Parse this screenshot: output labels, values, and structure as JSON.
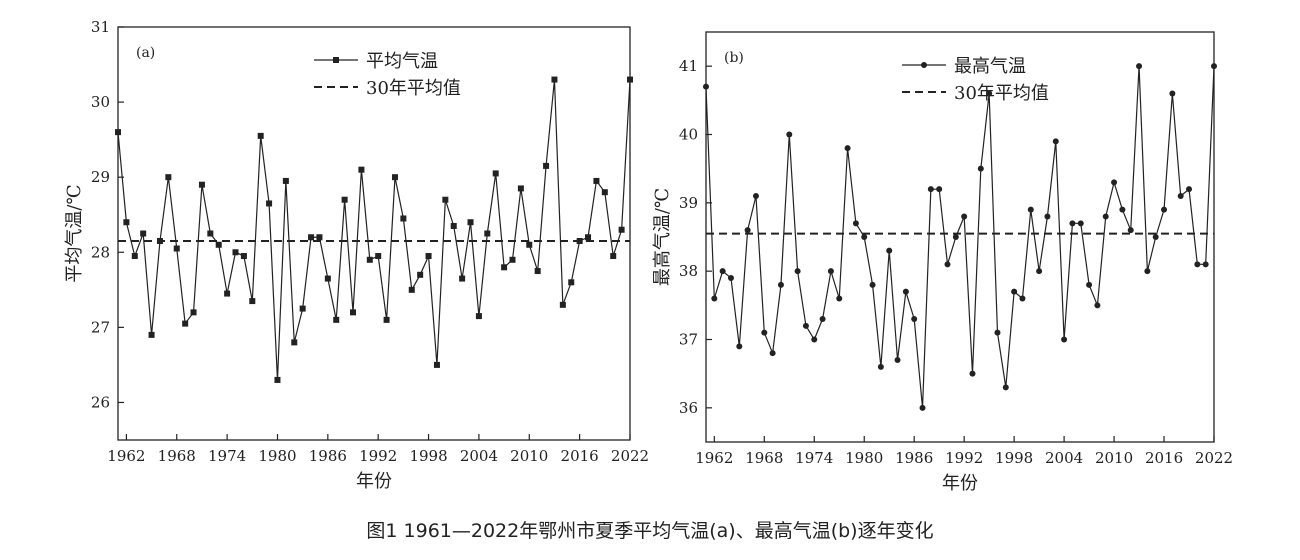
{
  "caption": "图1 1961—2022年鄂州市夏季平均气温(a)、最高气温(b)逐年变化",
  "chart_data": [
    {
      "type": "line",
      "panel_label": "(a)",
      "xlabel": "年份",
      "ylabel": "平均气温/℃",
      "xlim": [
        1961,
        2022
      ],
      "ylim": [
        25.5,
        31
      ],
      "xticks": [
        1962,
        1968,
        1974,
        1980,
        1986,
        1992,
        1998,
        2004,
        2010,
        2016,
        2022
      ],
      "yticks": [
        26,
        27,
        28,
        29,
        30,
        31
      ],
      "legend": [
        "平均气温",
        "30年平均值"
      ],
      "legend_position": "top-center",
      "marker": "square",
      "reference_line": {
        "name": "30年平均值",
        "value": 28.15
      },
      "series": [
        {
          "name": "平均气温",
          "x": [
            1961,
            1962,
            1963,
            1964,
            1965,
            1966,
            1967,
            1968,
            1969,
            1970,
            1971,
            1972,
            1973,
            1974,
            1975,
            1976,
            1977,
            1978,
            1979,
            1980,
            1981,
            1982,
            1983,
            1984,
            1985,
            1986,
            1987,
            1988,
            1989,
            1990,
            1991,
            1992,
            1993,
            1994,
            1995,
            1996,
            1997,
            1998,
            1999,
            2000,
            2001,
            2002,
            2003,
            2004,
            2005,
            2006,
            2007,
            2008,
            2009,
            2010,
            2011,
            2012,
            2013,
            2014,
            2015,
            2016,
            2017,
            2018,
            2019,
            2020,
            2021,
            2022
          ],
          "y": [
            29.6,
            28.4,
            27.95,
            28.25,
            26.9,
            28.15,
            29.0,
            28.05,
            27.05,
            27.2,
            28.9,
            28.25,
            28.1,
            27.45,
            28.0,
            27.95,
            27.35,
            29.55,
            28.65,
            26.3,
            28.95,
            26.8,
            27.25,
            28.2,
            28.2,
            27.65,
            27.1,
            28.7,
            27.2,
            29.1,
            27.9,
            27.95,
            27.1,
            29.0,
            28.45,
            27.5,
            27.7,
            27.95,
            26.5,
            28.7,
            28.35,
            27.65,
            28.4,
            27.15,
            28.25,
            29.05,
            27.8,
            27.9,
            28.85,
            28.1,
            27.75,
            29.15,
            30.3,
            27.3,
            27.6,
            28.15,
            28.2,
            28.95,
            28.8,
            27.95,
            28.3,
            30.3
          ]
        }
      ]
    },
    {
      "type": "line",
      "panel_label": "(b)",
      "xlabel": "年份",
      "ylabel": "最高气温/℃",
      "xlim": [
        1961,
        2022
      ],
      "ylim": [
        35.5,
        41.5
      ],
      "xticks": [
        1962,
        1968,
        1974,
        1980,
        1986,
        1992,
        1998,
        2004,
        2010,
        2016,
        2022
      ],
      "yticks": [
        36,
        37,
        38,
        39,
        40,
        41
      ],
      "legend": [
        "最高气温",
        "30年平均值"
      ],
      "legend_position": "top-center",
      "marker": "circle",
      "reference_line": {
        "name": "30年平均值",
        "value": 38.55
      },
      "series": [
        {
          "name": "最高气温",
          "x": [
            1961,
            1962,
            1963,
            1964,
            1965,
            1966,
            1967,
            1968,
            1969,
            1970,
            1971,
            1972,
            1973,
            1974,
            1975,
            1976,
            1977,
            1978,
            1979,
            1980,
            1981,
            1982,
            1983,
            1984,
            1985,
            1986,
            1987,
            1988,
            1989,
            1990,
            1991,
            1992,
            1993,
            1994,
            1995,
            1996,
            1997,
            1998,
            1999,
            2000,
            2001,
            2002,
            2003,
            2004,
            2005,
            2006,
            2007,
            2008,
            2009,
            2010,
            2011,
            2012,
            2013,
            2014,
            2015,
            2016,
            2017,
            2018,
            2019,
            2020,
            2021,
            2022
          ],
          "y": [
            40.7,
            37.6,
            38.0,
            37.9,
            36.9,
            38.6,
            39.1,
            37.1,
            36.8,
            37.8,
            40.0,
            38.0,
            37.2,
            37.0,
            37.3,
            38.0,
            37.6,
            39.8,
            38.7,
            38.5,
            37.8,
            36.6,
            38.3,
            36.7,
            37.7,
            37.3,
            36.0,
            39.2,
            39.2,
            38.1,
            38.5,
            38.8,
            36.5,
            39.5,
            40.6,
            37.1,
            36.3,
            37.7,
            37.6,
            38.9,
            38.0,
            38.8,
            39.9,
            37.0,
            38.7,
            38.7,
            37.8,
            37.5,
            38.8,
            39.3,
            38.9,
            38.6,
            41.0,
            38.0,
            38.5,
            38.9,
            40.6,
            39.1,
            39.2,
            38.1,
            38.1,
            41.0
          ]
        }
      ]
    }
  ]
}
